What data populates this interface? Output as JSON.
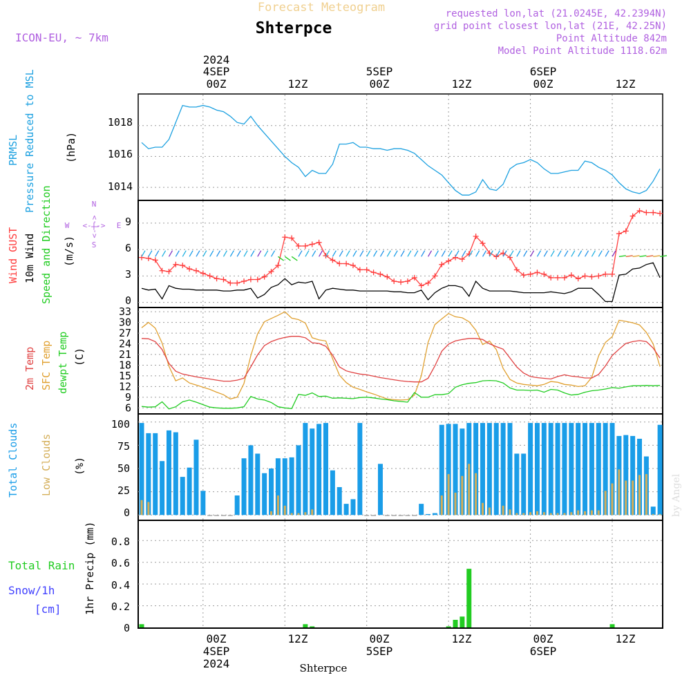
{
  "header": {
    "chart_title": "Forecast Meteogram",
    "location": "Shterpce",
    "model": "ICON-EU, ~ 7km",
    "requested": "requested lon,lat (21.0245E, 42.2394N)",
    "grid_point": "grid point closest lon,lat (21E, 42.25N)",
    "point_altitude": "Point Altitude 842m",
    "model_altitude": "Model Point Altitude 1118.62m",
    "watermark": "by Angel"
  },
  "time_axis": {
    "top": {
      "year": "2024",
      "dates": [
        "4SEP",
        "5SEP",
        "6SEP"
      ],
      "hours": [
        "00Z",
        "12Z",
        "00Z",
        "12Z",
        "00Z",
        "12Z"
      ]
    },
    "bottom": {
      "hours": [
        "00Z",
        "12Z",
        "00Z",
        "12Z",
        "00Z",
        "12Z"
      ],
      "dates": [
        "4SEP",
        "5SEP",
        "6SEP"
      ],
      "year": "2024"
    },
    "footer_location": "Shterpce"
  },
  "colors": {
    "pressure": "#1ba0e0",
    "gust": "#ff3c3c",
    "wind": "#000000",
    "temp": "#e04040",
    "sfc": "#e0a030",
    "dewpt": "#20cc20",
    "total_clouds": "#1a9de8",
    "low_clouds": "#d4ae58",
    "rain": "#22cc22",
    "snow": "#4040ff",
    "header_title": "#f0d090",
    "info": "#b060e0"
  },
  "panels": {
    "pressure": {
      "labels": [
        "PRMSL",
        "Pressure Reduced to MSL"
      ],
      "unit": "(hPa)",
      "ticks": [
        "1014",
        "1016",
        "1018"
      ]
    },
    "wind": {
      "labels": [
        "Wind GUST",
        "10m Wind",
        "Speed and Direction"
      ],
      "unit": "(m/s)",
      "ticks": [
        "0",
        "3",
        "6",
        "9"
      ],
      "compass": {
        "n": "N",
        "s": "S",
        "w": "W",
        "e": "E",
        "ns": "<-|->",
        "we": "<-|->"
      }
    },
    "temp": {
      "labels": [
        "2m Temp",
        "SFC Temp",
        "dewpt Temp"
      ],
      "unit": "(C)",
      "ticks": [
        "6",
        "9",
        "12",
        "15",
        "18",
        "21",
        "24",
        "27",
        "30",
        "33"
      ]
    },
    "clouds": {
      "labels": [
        "Total Clouds",
        "Low Clouds"
      ],
      "unit": "(%)",
      "ticks": [
        "0",
        "25",
        "50",
        "75",
        "100"
      ]
    },
    "precip": {
      "labels": [
        "Total  Rain",
        "Snow/1h",
        "[cm]"
      ],
      "unit": "1hr Precip (mm)",
      "ticks": [
        "0",
        "0.2",
        "0.4",
        "0.6",
        "0.8"
      ]
    }
  },
  "chart_data": [
    {
      "type": "line",
      "title": "PRMSL Pressure Reduced to MSL",
      "ylabel": "hPa",
      "x_unit": "hours since 03SEP 15Z",
      "ylim": [
        1013.2,
        1020.0
      ],
      "x": [
        0,
        1,
        2,
        3,
        4,
        5,
        6,
        7,
        8,
        9,
        10,
        11,
        12,
        13,
        14,
        15,
        16,
        17,
        18,
        19,
        20,
        21,
        22,
        23,
        24,
        25,
        26,
        27,
        28,
        29,
        30,
        31,
        32,
        33,
        34,
        35,
        36,
        37,
        38,
        39,
        40,
        41,
        42,
        43,
        44,
        45,
        46,
        47,
        48,
        49,
        50,
        51,
        52,
        53,
        54,
        55,
        56,
        57,
        58,
        59,
        60,
        61,
        62,
        63,
        64,
        65,
        66,
        67,
        68,
        69,
        70,
        71,
        72,
        73,
        74,
        75,
        76
      ],
      "values": [
        1016.9,
        1016.5,
        1016.6,
        1016.6,
        1017.1,
        1018.2,
        1019.3,
        1019.2,
        1019.2,
        1019.3,
        1019.2,
        1019.0,
        1018.9,
        1018.6,
        1018.2,
        1018.1,
        1018.6,
        1018.0,
        1017.5,
        1017.0,
        1016.5,
        1016.0,
        1015.6,
        1015.3,
        1014.7,
        1015.1,
        1014.9,
        1014.9,
        1015.5,
        1016.8,
        1016.8,
        1016.9,
        1016.6,
        1016.6,
        1016.5,
        1016.5,
        1016.4,
        1016.5,
        1016.5,
        1016.4,
        1016.2,
        1015.8,
        1015.4,
        1015.1,
        1014.8,
        1014.3,
        1013.8,
        1013.5,
        1013.5,
        1013.7,
        1014.5,
        1013.9,
        1013.8,
        1014.2,
        1015.2,
        1015.5,
        1015.6,
        1015.8,
        1015.6,
        1015.2,
        1014.9,
        1014.9,
        1015.0,
        1015.1,
        1015.1,
        1015.7,
        1015.6,
        1015.3,
        1015.1,
        1014.8,
        1014.3,
        1013.9,
        1013.7,
        1013.6,
        1013.8,
        1014.4,
        1015.2
      ]
    },
    {
      "type": "line",
      "title": "Wind GUST / 10m Wind Speed and Direction",
      "ylabel": "m/s",
      "x_unit": "hours since 03SEP 15Z",
      "ylim": [
        -0.5,
        11.5
      ],
      "x": [
        0,
        1,
        2,
        3,
        4,
        5,
        6,
        7,
        8,
        9,
        10,
        11,
        12,
        13,
        14,
        15,
        16,
        17,
        18,
        19,
        20,
        21,
        22,
        23,
        24,
        25,
        26,
        27,
        28,
        29,
        30,
        31,
        32,
        33,
        34,
        35,
        36,
        37,
        38,
        39,
        40,
        41,
        42,
        43,
        44,
        45,
        46,
        47,
        48,
        49,
        50,
        51,
        52,
        53,
        54,
        55,
        56,
        57,
        58,
        59,
        60,
        61,
        62,
        63,
        64,
        65,
        66,
        67,
        68,
        69,
        70,
        71,
        72,
        73,
        74,
        75,
        76
      ],
      "series": [
        {
          "name": "Wind GUST",
          "values": [
            5.1,
            5.0,
            4.8,
            3.6,
            3.5,
            4.3,
            4.2,
            3.8,
            3.6,
            3.3,
            3.0,
            2.7,
            2.6,
            2.2,
            2.2,
            2.4,
            2.6,
            2.6,
            2.9,
            3.5,
            4.2,
            7.4,
            7.3,
            6.4,
            6.4,
            6.6,
            6.8,
            5.3,
            4.8,
            4.4,
            4.4,
            4.2,
            3.7,
            3.7,
            3.4,
            3.2,
            2.9,
            2.4,
            2.3,
            2.4,
            2.8,
            1.9,
            2.2,
            3.0,
            4.3,
            4.7,
            5.1,
            4.9,
            5.5,
            7.5,
            6.7,
            5.6,
            5.2,
            5.6,
            5.1,
            3.7,
            3.1,
            3.2,
            3.4,
            3.2,
            2.8,
            2.8,
            2.8,
            3.1,
            2.7,
            3.0,
            2.9,
            3.0,
            3.2,
            3.2,
            7.8,
            8.1,
            9.8,
            10.4,
            10.2,
            10.2,
            10.1
          ]
        },
        {
          "name": "10m Wind",
          "values": [
            1.6,
            1.4,
            1.5,
            0.4,
            1.9,
            1.6,
            1.5,
            1.5,
            1.4,
            1.4,
            1.4,
            1.4,
            1.3,
            1.3,
            1.4,
            1.4,
            1.6,
            0.5,
            0.9,
            1.7,
            2.0,
            2.7,
            2.0,
            2.3,
            2.2,
            2.4,
            0.4,
            1.4,
            1.6,
            1.5,
            1.4,
            1.4,
            1.3,
            1.3,
            1.3,
            1.3,
            1.3,
            1.2,
            1.2,
            1.1,
            1.1,
            1.4,
            0.3,
            1.1,
            1.6,
            1.9,
            1.9,
            1.7,
            0.7,
            2.4,
            1.6,
            1.3,
            1.3,
            1.3,
            1.3,
            1.2,
            1.1,
            1.1,
            1.1,
            1.1,
            1.2,
            1.1,
            1.0,
            1.2,
            1.6,
            1.6,
            1.6,
            0.9,
            0.1,
            0.1,
            3.1,
            3.2,
            3.8,
            3.9,
            4.3,
            4.5,
            2.8
          ]
        }
      ]
    },
    {
      "type": "line",
      "title": "2m Temp / SFC Temp / dewpt Temp",
      "ylabel": "C",
      "x_unit": "hours since 03SEP 15Z",
      "ylim": [
        4.5,
        34.0
      ],
      "x": [
        0,
        1,
        2,
        3,
        4,
        5,
        6,
        7,
        8,
        9,
        10,
        11,
        12,
        13,
        14,
        15,
        16,
        17,
        18,
        19,
        20,
        21,
        22,
        23,
        24,
        25,
        26,
        27,
        28,
        29,
        30,
        31,
        32,
        33,
        34,
        35,
        36,
        37,
        38,
        39,
        40,
        41,
        42,
        43,
        44,
        45,
        46,
        47,
        48,
        49,
        50,
        51,
        52,
        53,
        54,
        55,
        56,
        57,
        58,
        59,
        60,
        61,
        62,
        63,
        64,
        65,
        66,
        67,
        68,
        69,
        70,
        71,
        72,
        73,
        74,
        75,
        76
      ],
      "series": [
        {
          "name": "2m Temp",
          "values": [
            25.5,
            25.4,
            24.6,
            22.4,
            18.5,
            16.3,
            15.5,
            15.1,
            14.7,
            14.4,
            14.1,
            13.8,
            13.5,
            13.5,
            13.8,
            14.3,
            17.5,
            20.9,
            23.5,
            24.6,
            25.3,
            25.8,
            26.1,
            26.1,
            25.7,
            24.3,
            24.1,
            23.3,
            20.8,
            17.5,
            16.4,
            15.9,
            15.5,
            15.3,
            14.9,
            14.5,
            14.2,
            13.9,
            13.6,
            13.4,
            13.3,
            13.3,
            14.3,
            17.8,
            21.9,
            23.9,
            24.8,
            25.2,
            25.5,
            25.5,
            25.2,
            24.0,
            23.2,
            22.5,
            20.0,
            17.5,
            15.8,
            14.8,
            14.5,
            14.3,
            14.1,
            14.8,
            15.3,
            14.9,
            14.7,
            14.4,
            14.4,
            15.4,
            17.8,
            20.7,
            22.5,
            24.1,
            24.6,
            24.9,
            24.6,
            22.8,
            20.0
          ]
        },
        {
          "name": "SFC Temp",
          "values": [
            28.5,
            30.0,
            28.4,
            24.2,
            17.7,
            13.6,
            14.4,
            13.0,
            12.4,
            11.8,
            11.2,
            10.4,
            9.7,
            8.5,
            9.0,
            12.8,
            20.6,
            26.8,
            30.2,
            31.1,
            32.0,
            33.0,
            31.2,
            30.8,
            29.8,
            25.7,
            25.1,
            24.8,
            19.8,
            15.2,
            13.1,
            11.8,
            11.2,
            10.5,
            9.9,
            9.2,
            8.5,
            8.3,
            8.2,
            8.3,
            9.6,
            15.0,
            24.4,
            29.4,
            31.0,
            32.5,
            31.6,
            31.3,
            30.2,
            27.8,
            23.8,
            24.8,
            22.4,
            17.1,
            14.0,
            13.0,
            12.6,
            12.4,
            12.2,
            12.6,
            13.4,
            13.2,
            12.6,
            12.4,
            12.0,
            12.2,
            14.6,
            20.6,
            24.4,
            26.0,
            30.6,
            30.3,
            29.9,
            29.3,
            27.2,
            24.0,
            17.6
          ]
        },
        {
          "name": "dewpt Temp",
          "values": [
            6.4,
            6.2,
            6.3,
            7.7,
            5.7,
            6.3,
            7.7,
            8.2,
            7.6,
            6.9,
            6.2,
            6.0,
            5.9,
            5.9,
            6.0,
            6.3,
            9.2,
            8.5,
            8.2,
            7.5,
            6.3,
            6.0,
            5.8,
            9.8,
            9.5,
            10.2,
            9.2,
            9.3,
            8.7,
            8.8,
            8.7,
            8.6,
            8.9,
            9.0,
            8.8,
            8.5,
            8.3,
            8.0,
            7.8,
            7.6,
            10.3,
            9.0,
            9.0,
            9.7,
            9.7,
            10.0,
            11.8,
            12.5,
            12.9,
            13.1,
            13.6,
            13.7,
            13.6,
            13.0,
            11.6,
            11.0,
            11.0,
            10.9,
            11.0,
            10.4,
            11.2,
            11.0,
            10.2,
            9.6,
            9.8,
            10.4,
            10.8,
            11.0,
            11.3,
            11.7,
            11.5,
            11.9,
            12.2,
            12.2,
            12.3,
            12.2,
            12.3
          ]
        }
      ]
    },
    {
      "type": "bar",
      "title": "Total Clouds / Low Clouds",
      "ylabel": "%",
      "x_unit": "hours since 03SEP 15Z",
      "ylim": [
        -5,
        108
      ],
      "x": [
        0,
        1,
        2,
        3,
        4,
        5,
        6,
        7,
        8,
        9,
        10,
        11,
        12,
        13,
        14,
        15,
        16,
        17,
        18,
        19,
        20,
        21,
        22,
        23,
        24,
        25,
        26,
        27,
        28,
        29,
        30,
        31,
        32,
        33,
        34,
        35,
        36,
        37,
        38,
        39,
        40,
        41,
        42,
        43,
        44,
        45,
        46,
        47,
        48,
        49,
        50,
        51,
        52,
        53,
        54,
        55,
        56,
        57,
        58,
        59,
        60,
        61,
        62,
        63,
        64,
        65,
        66,
        67,
        68,
        69,
        70,
        71,
        72,
        73,
        74,
        75,
        76
      ],
      "series": [
        {
          "name": "Total Clouds",
          "values": [
            99,
            88,
            88,
            58,
            91,
            89,
            41,
            51,
            81,
            26,
            0,
            0,
            0,
            0,
            21,
            61,
            75,
            66,
            45,
            50,
            61,
            61,
            62,
            75,
            99,
            93,
            98,
            99,
            48,
            30,
            12,
            17,
            99,
            0,
            0,
            55,
            0,
            0,
            0,
            0,
            0,
            12,
            1,
            2,
            97,
            98,
            98,
            93,
            99,
            99,
            99,
            99,
            99,
            99,
            99,
            66,
            66,
            99,
            99,
            99,
            99,
            99,
            99,
            99,
            99,
            99,
            99,
            99,
            99,
            99,
            85,
            86,
            85,
            82,
            63,
            9,
            97
          ]
        },
        {
          "name": "Low Clouds",
          "values": [
            16,
            14,
            0,
            0,
            0,
            0,
            0,
            0,
            0,
            0,
            0,
            0,
            0,
            0,
            0,
            0,
            0,
            0,
            0,
            4,
            21,
            10,
            2,
            2,
            3,
            6,
            0,
            0,
            0,
            0,
            0,
            0,
            0,
            0,
            0,
            0,
            0,
            0,
            0,
            0,
            0,
            0,
            0,
            0,
            21,
            44,
            24,
            42,
            55,
            45,
            13,
            8,
            0,
            10,
            6,
            2,
            2,
            3,
            4,
            3,
            2,
            2,
            2,
            3,
            5,
            4,
            5,
            5,
            26,
            34,
            49,
            37,
            37,
            43,
            44,
            1,
            1
          ]
        }
      ]
    },
    {
      "type": "bar",
      "title": "1hr Precip (mm)",
      "ylabel": "1hr Precip (mm)",
      "x_unit": "hours since 03SEP 15Z",
      "ylim": [
        0,
        0.98
      ],
      "x": [
        0,
        24,
        25,
        45,
        46,
        47,
        48,
        49,
        69
      ],
      "series": [
        {
          "name": "Total Rain",
          "values": [
            0.03,
            0.03,
            0.01,
            0.01,
            0.07,
            0.1,
            0.54,
            0.0,
            0.03
          ]
        },
        {
          "name": "Snow/1h",
          "values": [
            0,
            0,
            0,
            0,
            0,
            0,
            0,
            0,
            0
          ]
        }
      ]
    }
  ]
}
